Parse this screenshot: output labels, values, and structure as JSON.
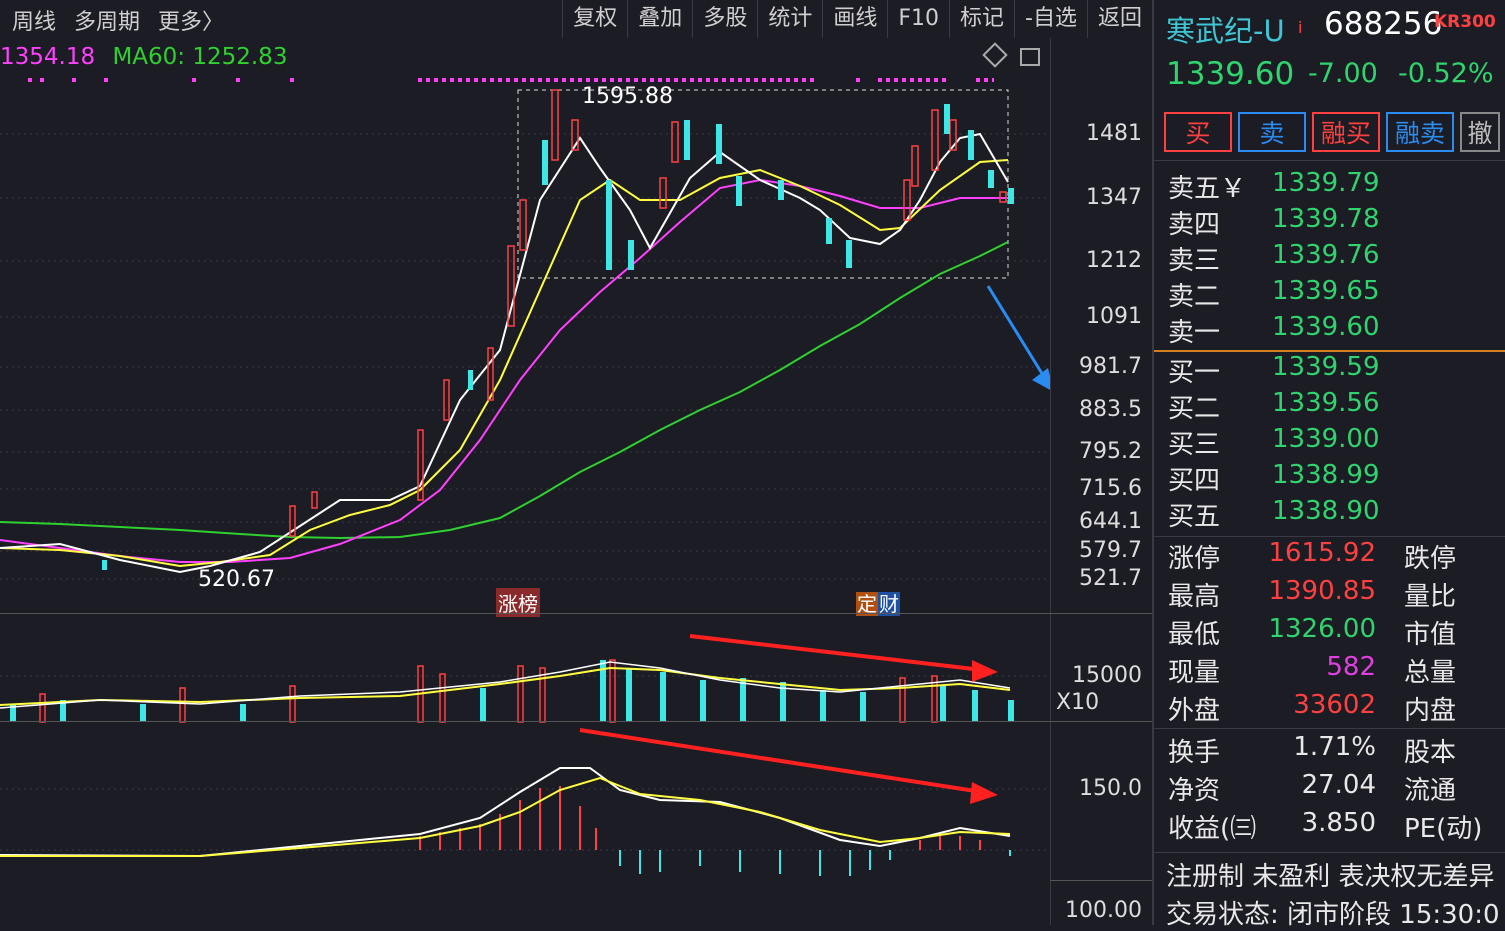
{
  "toolbar": {
    "left": [
      "周线",
      "多周期",
      "更多〉"
    ],
    "right": [
      "复权",
      "叠加",
      "多股",
      "统计",
      "画线",
      "F10",
      "标记",
      "-自选",
      "返回"
    ]
  },
  "ma_header": {
    "ma30": "1354.18",
    "ma60": "MA60: 1252.83"
  },
  "annotations": {
    "high_label": "1595.88",
    "low_label": "520.67",
    "tag1": "涨榜",
    "tag2_a": "定",
    "tag2_b": "财"
  },
  "price_axis": [
    "1481",
    "1347",
    "1212",
    "1091",
    "981.7",
    "883.5",
    "795.2",
    "715.6",
    "644.1",
    "579.7",
    "521.7"
  ],
  "volume_axis": {
    "top": "15000",
    "unit": "X10"
  },
  "macd_axis": {
    "top": "150.0",
    "bottom": "100.00"
  },
  "stock": {
    "name": "寒武纪-U",
    "flag": "i",
    "code": "688256",
    "badge": "KR300",
    "price": "1339.60",
    "change": "-7.00",
    "change_pct": "-0.52%"
  },
  "trade_buttons": [
    "买",
    "卖",
    "融买",
    "融卖",
    "撤"
  ],
  "sell_orders": [
    {
      "label": "卖五￥",
      "price": "1339.79"
    },
    {
      "label": "卖四",
      "price": "1339.78"
    },
    {
      "label": "卖三",
      "price": "1339.76"
    },
    {
      "label": "卖二",
      "price": "1339.65"
    },
    {
      "label": "卖一",
      "price": "1339.60"
    }
  ],
  "buy_orders": [
    {
      "label": "买一",
      "price": "1339.59"
    },
    {
      "label": "买二",
      "price": "1339.56"
    },
    {
      "label": "买三",
      "price": "1339.00"
    },
    {
      "label": "买四",
      "price": "1338.99"
    },
    {
      "label": "买五",
      "price": "1338.90"
    }
  ],
  "stats": [
    {
      "label": "涨停",
      "value": "1615.92",
      "color": "#ff4040",
      "label2": "跌停"
    },
    {
      "label": "最高",
      "value": "1390.85",
      "color": "#ff4040",
      "label2": "量比"
    },
    {
      "label": "最低",
      "value": "1326.00",
      "color": "#30d46e",
      "label2": "市值"
    },
    {
      "label": "现量",
      "value": "582",
      "color": "#e040e0",
      "label2": "总量"
    },
    {
      "label": "外盘",
      "value": "33602",
      "color": "#ff4040",
      "label2": "内盘"
    },
    {
      "label": "换手",
      "value": "1.71%",
      "color": "#e8e8e8",
      "label2": "股本"
    },
    {
      "label": "净资",
      "value": "27.04",
      "color": "#e8e8e8",
      "label2": "流通"
    },
    {
      "label": "收益(㈢",
      "value": "3.850",
      "color": "#e8e8e8",
      "label2": "PE(动)"
    }
  ],
  "footer": {
    "tags": "注册制 未盈利 表决权无差异",
    "status": "交易状态: 闭市阶段 15:30:0"
  },
  "colors": {
    "up": "#ff4040",
    "down": "#3ee6e6",
    "ma5": "#ffffff",
    "ma10": "#ffff40",
    "ma20": "#ff40ff",
    "ma60": "#30d030",
    "arrow_blue": "#2a8cf0",
    "arrow_red": "#ff2020"
  }
}
